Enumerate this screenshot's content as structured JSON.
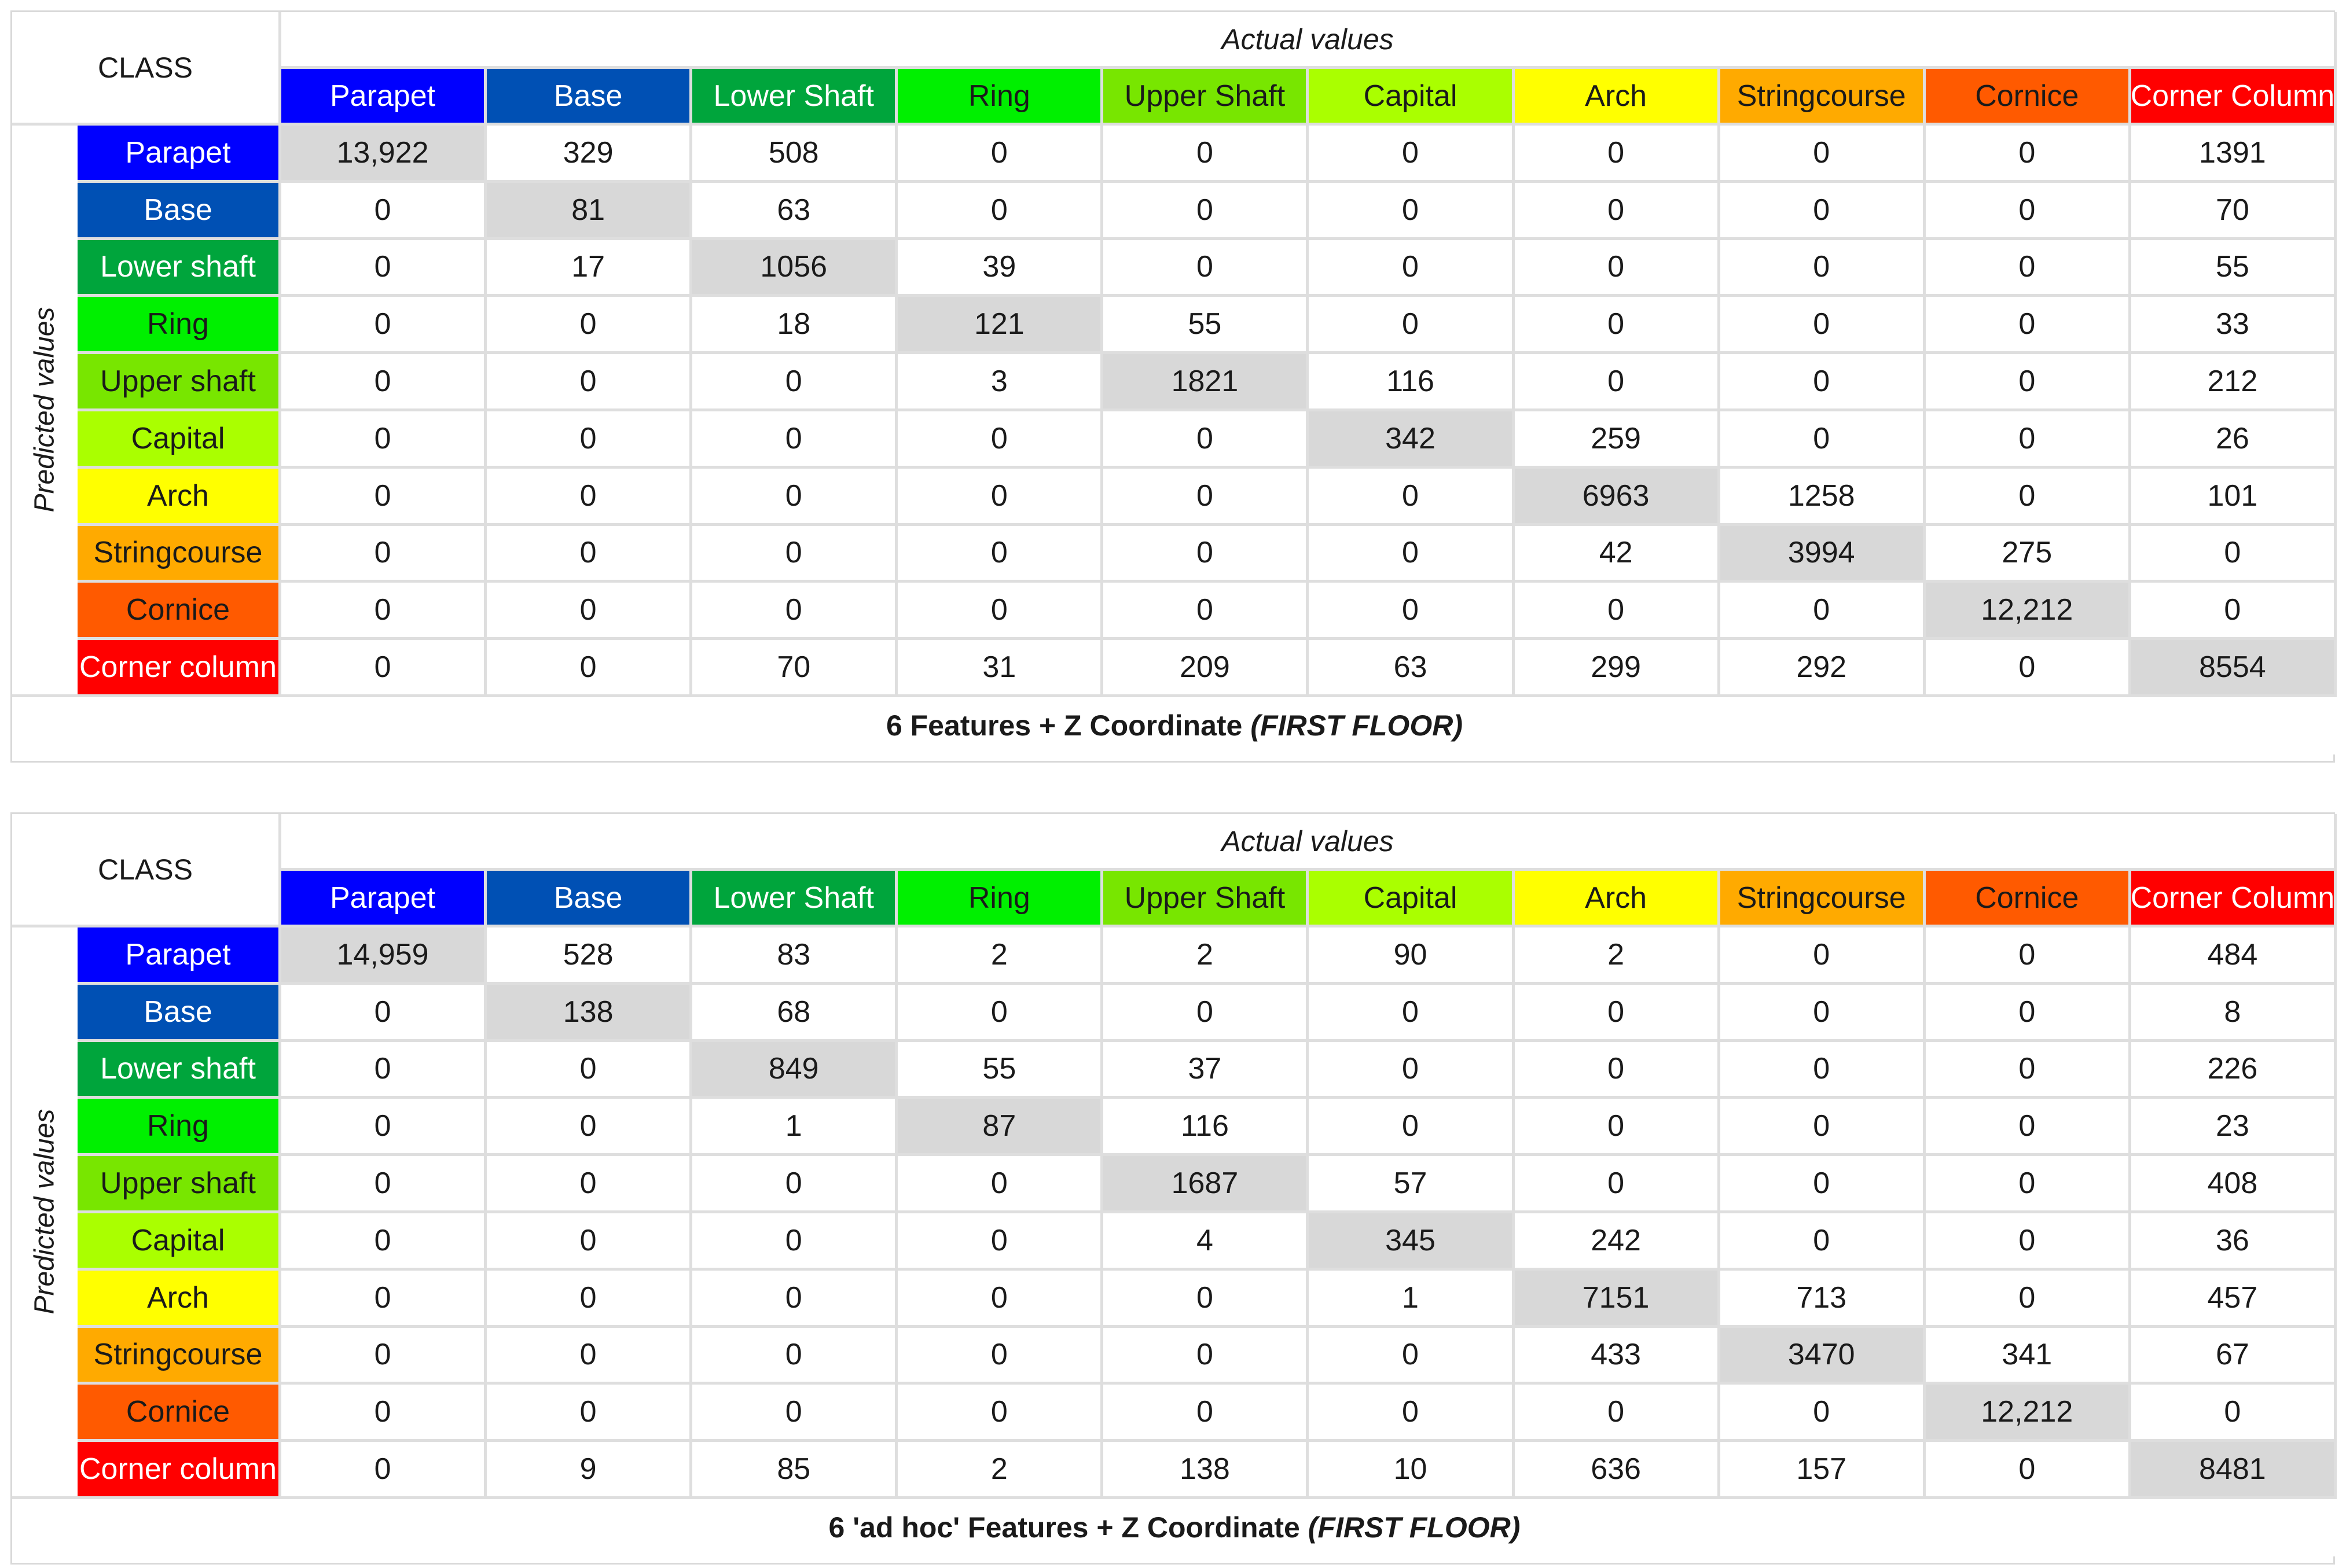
{
  "colors": {
    "Parapet": {
      "bg": "#0000ff",
      "fg": "#ffffff"
    },
    "Base": {
      "bg": "#0050b4",
      "fg": "#ffffff"
    },
    "Lower Shaft": {
      "bg": "#00a53c",
      "fg": "#ffffff"
    },
    "Ring": {
      "bg": "#00f000",
      "fg": "#1a1a1a"
    },
    "Upper Shaft": {
      "bg": "#78e600",
      "fg": "#1a1a1a"
    },
    "Capital": {
      "bg": "#aaff00",
      "fg": "#1a1a1a"
    },
    "Arch": {
      "bg": "#ffff00",
      "fg": "#1a1a1a"
    },
    "Stringcourse": {
      "bg": "#ffaa00",
      "fg": "#1a1a1a"
    },
    "Cornice": {
      "bg": "#ff5a00",
      "fg": "#1a1a1a"
    },
    "Corner Column": {
      "bg": "#ff0000",
      "fg": "#ffffff"
    }
  },
  "tables": [
    {
      "corner_label": "CLASS",
      "actual_label": "Actual values",
      "predicted_label": "Predicted values",
      "columns": [
        "Parapet",
        "Base",
        "Lower Shaft",
        "Ring",
        "Upper Shaft",
        "Capital",
        "Arch",
        "Stringcourse",
        "Cornice",
        "Corner Column"
      ],
      "rows": [
        {
          "label": "Parapet",
          "values": [
            "13,922",
            "329",
            "508",
            "0",
            "0",
            "0",
            "0",
            "0",
            "0",
            "1391"
          ]
        },
        {
          "label": "Base",
          "values": [
            "0",
            "81",
            "63",
            "0",
            "0",
            "0",
            "0",
            "0",
            "0",
            "70"
          ]
        },
        {
          "label": "Lower shaft",
          "values": [
            "0",
            "17",
            "1056",
            "39",
            "0",
            "0",
            "0",
            "0",
            "0",
            "55"
          ]
        },
        {
          "label": "Ring",
          "values": [
            "0",
            "0",
            "18",
            "121",
            "55",
            "0",
            "0",
            "0",
            "0",
            "33"
          ]
        },
        {
          "label": "Upper shaft",
          "values": [
            "0",
            "0",
            "0",
            "3",
            "1821",
            "116",
            "0",
            "0",
            "0",
            "212"
          ]
        },
        {
          "label": "Capital",
          "values": [
            "0",
            "0",
            "0",
            "0",
            "0",
            "342",
            "259",
            "0",
            "0",
            "26"
          ]
        },
        {
          "label": "Arch",
          "values": [
            "0",
            "0",
            "0",
            "0",
            "0",
            "0",
            "6963",
            "1258",
            "0",
            "101"
          ]
        },
        {
          "label": "Stringcourse",
          "values": [
            "0",
            "0",
            "0",
            "0",
            "0",
            "0",
            "42",
            "3994",
            "275",
            "0"
          ]
        },
        {
          "label": "Cornice",
          "values": [
            "0",
            "0",
            "0",
            "0",
            "0",
            "0",
            "0",
            "0",
            "12,212",
            "0"
          ]
        },
        {
          "label": "Corner column",
          "values": [
            "0",
            "0",
            "70",
            "31",
            "209",
            "63",
            "299",
            "292",
            "0",
            "8554"
          ]
        }
      ],
      "caption_main": "6 Features + Z Coordinate",
      "caption_italic": "(FIRST FLOOR)"
    },
    {
      "corner_label": "CLASS",
      "actual_label": "Actual values",
      "predicted_label": "Predicted values",
      "columns": [
        "Parapet",
        "Base",
        "Lower Shaft",
        "Ring",
        "Upper Shaft",
        "Capital",
        "Arch",
        "Stringcourse",
        "Cornice",
        "Corner Column"
      ],
      "rows": [
        {
          "label": "Parapet",
          "values": [
            "14,959",
            "528",
            "83",
            "2",
            "2",
            "90",
            "2",
            "0",
            "0",
            "484"
          ]
        },
        {
          "label": "Base",
          "values": [
            "0",
            "138",
            "68",
            "0",
            "0",
            "0",
            "0",
            "0",
            "0",
            "8"
          ]
        },
        {
          "label": "Lower shaft",
          "values": [
            "0",
            "0",
            "849",
            "55",
            "37",
            "0",
            "0",
            "0",
            "0",
            "226"
          ]
        },
        {
          "label": "Ring",
          "values": [
            "0",
            "0",
            "1",
            "87",
            "116",
            "0",
            "0",
            "0",
            "0",
            "23"
          ]
        },
        {
          "label": "Upper shaft",
          "values": [
            "0",
            "0",
            "0",
            "0",
            "1687",
            "57",
            "0",
            "0",
            "0",
            "408"
          ]
        },
        {
          "label": "Capital",
          "values": [
            "0",
            "0",
            "0",
            "0",
            "4",
            "345",
            "242",
            "0",
            "0",
            "36"
          ]
        },
        {
          "label": "Arch",
          "values": [
            "0",
            "0",
            "0",
            "0",
            "0",
            "1",
            "7151",
            "713",
            "0",
            "457"
          ]
        },
        {
          "label": "Stringcourse",
          "values": [
            "0",
            "0",
            "0",
            "0",
            "0",
            "0",
            "433",
            "3470",
            "341",
            "67"
          ]
        },
        {
          "label": "Cornice",
          "values": [
            "0",
            "0",
            "0",
            "0",
            "0",
            "0",
            "0",
            "0",
            "12,212",
            "0"
          ]
        },
        {
          "label": "Corner column",
          "values": [
            "0",
            "9",
            "85",
            "2",
            "138",
            "10",
            "636",
            "157",
            "0",
            "8481"
          ]
        }
      ],
      "caption_main": "6 'ad hoc' Features + Z Coordinate",
      "caption_italic": "(FIRST FLOOR)"
    }
  ]
}
